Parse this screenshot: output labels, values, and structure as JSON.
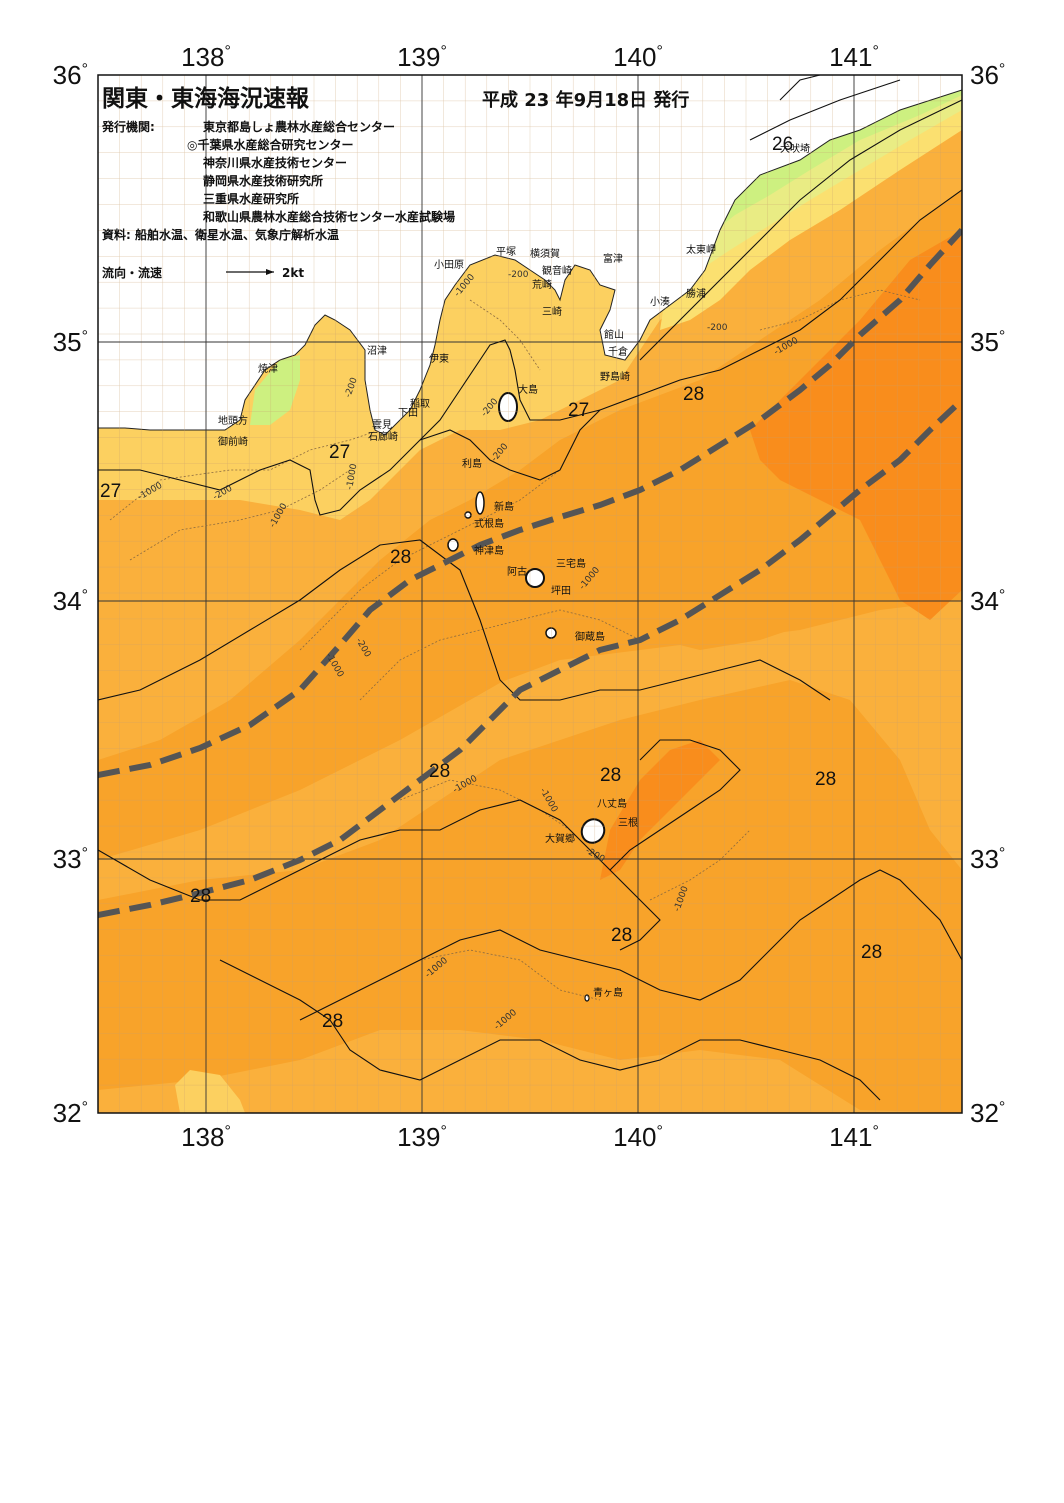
{
  "title": "関東・東海海況速報",
  "issue_date": "平成 23 年9月18日 発行",
  "publisher": {
    "label": "発行機関:",
    "orgs": [
      "東京都島しょ農林水産総合センター",
      "◎千葉県水産総合研究センター",
      "神奈川県水産技術センター",
      "静岡県水産技術研究所",
      "三重県水産研究所",
      "和歌山県農林水産総合技術センター水産試験場"
    ]
  },
  "sources": "資料: 船舶水温、衛星水温、気象庁解析水温",
  "legend": {
    "flow_label": "流向・流速",
    "flow_speed": "2kt"
  },
  "axes": {
    "lon_labels": [
      "138",
      "139",
      "140",
      "141"
    ],
    "lat_labels": [
      "36",
      "35",
      "34",
      "33",
      "32"
    ],
    "degree_symbol": "°"
  },
  "colors": {
    "t28_5": "#f98d1c",
    "t28": "#f8a32a",
    "t27_5": "#fab03c",
    "t27": "#fcd060",
    "t26_5": "#fbe070",
    "t26": "#e9ec84",
    "t25_5": "#cdf080",
    "t25": "#8ee870",
    "land": "#ffffff",
    "kuroshio": "#555555"
  },
  "isotherm_labels": [
    {
      "id": "iso-27-a",
      "text": "27"
    },
    {
      "id": "iso-27-b",
      "text": "27"
    },
    {
      "id": "iso-27-c",
      "text": "27"
    },
    {
      "id": "iso-28-a",
      "text": "28"
    },
    {
      "id": "iso-28-b",
      "text": "28"
    },
    {
      "id": "iso-28-c",
      "text": "28"
    },
    {
      "id": "iso-28-d",
      "text": "28"
    },
    {
      "id": "iso-28-e",
      "text": "28"
    },
    {
      "id": "iso-28-f",
      "text": "28"
    },
    {
      "id": "iso-28-g",
      "text": "28"
    },
    {
      "id": "iso-28-h",
      "text": "28"
    },
    {
      "id": "iso-28-i",
      "text": "28"
    },
    {
      "id": "iso-26-a",
      "text": "26"
    }
  ],
  "places": [
    "小田原",
    "平塚",
    "横須賀",
    "観音崎",
    "荒崎",
    "三崎",
    "富津",
    "太東岬",
    "勝浦",
    "小湊",
    "館山",
    "千倉",
    "野島崎",
    "沼津",
    "伊東",
    "焼津",
    "稲取",
    "下田",
    "雲見",
    "石廊崎",
    "地頭方",
    "御前崎",
    "大島",
    "利島",
    "新島",
    "式根島",
    "神津島",
    "三宅島",
    "阿古",
    "坪田",
    "御蔵島",
    "八丈島",
    "三根",
    "大賀郷",
    "青ヶ島",
    "犬吠埼"
  ],
  "depth_labels": [
    "-200",
    "-1000"
  ]
}
